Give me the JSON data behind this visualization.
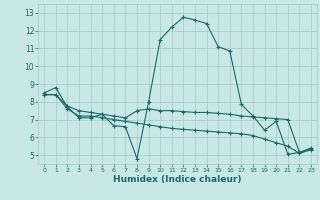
{
  "xlabel": "Humidex (Indice chaleur)",
  "bg_color": "#c8e8e8",
  "grid_color": "#a8c8c8",
  "line_color": "#1a6868",
  "xlim": [
    -0.5,
    23.5
  ],
  "ylim": [
    4.5,
    13.5
  ],
  "xticks": [
    0,
    1,
    2,
    3,
    4,
    5,
    6,
    7,
    8,
    9,
    10,
    11,
    12,
    13,
    14,
    15,
    16,
    17,
    18,
    19,
    20,
    21,
    22,
    23
  ],
  "yticks": [
    5,
    6,
    7,
    8,
    9,
    10,
    11,
    12,
    13
  ],
  "line1_x": [
    0,
    1,
    2,
    3,
    4,
    5,
    6,
    7,
    8,
    9,
    10,
    11,
    12,
    13,
    14,
    15,
    16,
    17,
    18,
    19,
    20,
    21,
    22,
    23
  ],
  "line1_y": [
    8.5,
    8.8,
    7.7,
    7.1,
    7.1,
    7.3,
    6.65,
    6.6,
    4.8,
    8.0,
    11.5,
    12.2,
    12.75,
    12.6,
    12.4,
    11.1,
    10.85,
    7.85,
    7.2,
    6.4,
    6.9,
    5.05,
    5.15,
    5.4
  ],
  "line2_x": [
    0,
    1,
    2,
    3,
    4,
    5,
    6,
    7,
    8,
    9,
    10,
    11,
    12,
    13,
    14,
    15,
    16,
    17,
    18,
    19,
    20,
    21,
    22,
    23
  ],
  "line2_y": [
    8.4,
    8.4,
    7.75,
    7.5,
    7.4,
    7.3,
    7.2,
    7.1,
    7.5,
    7.6,
    7.5,
    7.5,
    7.45,
    7.4,
    7.4,
    7.35,
    7.3,
    7.2,
    7.15,
    7.1,
    7.05,
    7.0,
    5.15,
    5.35
  ],
  "line3_x": [
    0,
    1,
    2,
    3,
    4,
    5,
    6,
    7,
    8,
    9,
    10,
    11,
    12,
    13,
    14,
    15,
    16,
    17,
    18,
    19,
    20,
    21,
    22,
    23
  ],
  "line3_y": [
    8.4,
    8.4,
    7.6,
    7.2,
    7.2,
    7.1,
    7.0,
    6.9,
    6.8,
    6.7,
    6.6,
    6.5,
    6.45,
    6.4,
    6.35,
    6.3,
    6.25,
    6.2,
    6.1,
    5.9,
    5.7,
    5.5,
    5.1,
    5.3
  ]
}
